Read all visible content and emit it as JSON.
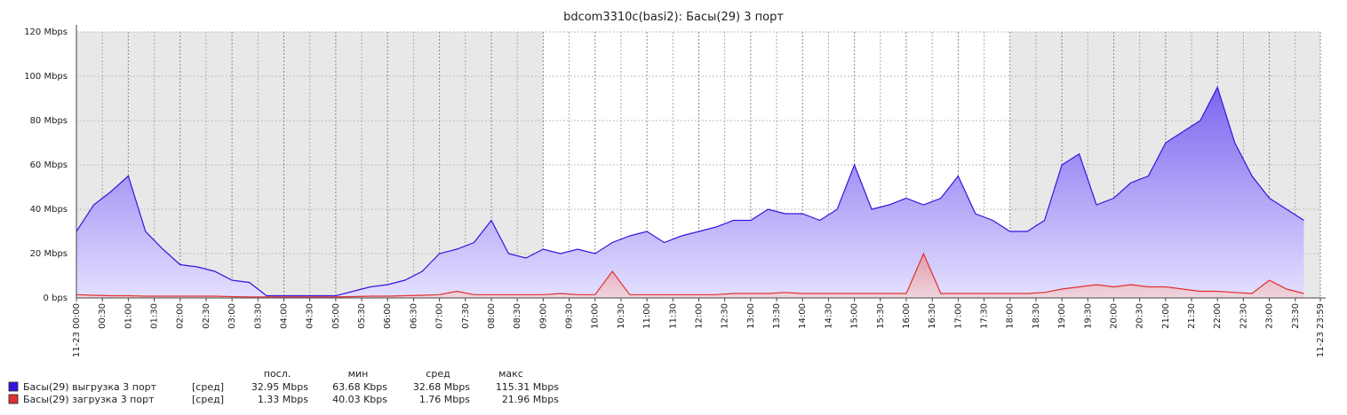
{
  "chart_data": {
    "type": "line",
    "title": "bdcom3310c(basi2): Басы(29) 3 порт",
    "x": [
      0,
      20,
      40,
      60,
      80,
      100,
      120,
      140,
      160,
      180,
      200,
      220,
      240,
      260,
      280,
      300,
      320,
      340,
      360,
      380,
      400,
      420,
      440,
      460,
      480,
      500,
      520,
      540,
      560,
      580,
      600,
      620,
      640,
      660,
      680,
      700,
      720,
      740,
      760,
      780,
      800,
      820,
      840,
      860,
      880,
      900,
      920,
      940,
      960,
      980,
      1000,
      1020,
      1040,
      1060,
      1080,
      1100,
      1120,
      1140,
      1160,
      1180,
      1200,
      1220,
      1240,
      1260,
      1280,
      1300,
      1320,
      1340,
      1360,
      1380,
      1400,
      1420
    ],
    "series": [
      {
        "name": "Басы(29)  выгрузка 3 порт",
        "color": "#3a12e0",
        "fill_top": "#7a66ee",
        "fill_bottom": "#e4e0ff",
        "values": [
          30,
          42,
          48,
          55,
          30,
          22,
          15,
          14,
          12,
          8,
          7,
          1,
          1,
          1,
          1,
          1,
          3,
          5,
          6,
          8,
          12,
          20,
          22,
          25,
          35,
          20,
          18,
          22,
          20,
          22,
          20,
          25,
          28,
          30,
          25,
          28,
          30,
          32,
          35,
          35,
          40,
          38,
          38,
          35,
          40,
          60,
          40,
          42,
          45,
          42,
          45,
          55,
          38,
          35,
          30,
          30,
          35,
          60,
          65,
          42,
          45,
          52,
          55,
          70,
          75,
          80,
          95,
          70,
          55,
          45,
          40,
          35
        ]
      },
      {
        "name": "Басы(29) загрузка 3 порт",
        "color": "#e03030",
        "fill_top": "#e88a8a",
        "fill_bottom": "#f5d0d0",
        "values": [
          1.5,
          1.2,
          1,
          1,
          0.8,
          0.8,
          0.8,
          0.8,
          0.8,
          0.6,
          0.5,
          0.5,
          0.5,
          0.5,
          0.5,
          0.5,
          0.6,
          0.8,
          0.8,
          1,
          1.2,
          1.5,
          3,
          1.5,
          1.5,
          1.5,
          1.5,
          1.5,
          2,
          1.5,
          1.5,
          12,
          1.5,
          1.5,
          1.5,
          1.5,
          1.5,
          1.5,
          2,
          2,
          2,
          2.5,
          2,
          2,
          2,
          2,
          2,
          2,
          2,
          20,
          2,
          2,
          2,
          2,
          2,
          2,
          2.5,
          4,
          5,
          6,
          5,
          6,
          5,
          5,
          4,
          3,
          3,
          2.5,
          2,
          8,
          4,
          2
        ]
      }
    ],
    "xlim": [
      0,
      1439
    ],
    "ylim": [
      0,
      120
    ],
    "yticks": [
      {
        "value": 0,
        "label": "0 bps"
      },
      {
        "value": 20,
        "label": "20 Mbps"
      },
      {
        "value": 40,
        "label": "40 Mbps"
      },
      {
        "value": 60,
        "label": "60 Mbps"
      },
      {
        "value": 80,
        "label": "80 Mbps"
      },
      {
        "value": 100,
        "label": "100 Mbps"
      },
      {
        "value": 120,
        "label": "120 Mbps"
      }
    ],
    "xticks": [
      {
        "value": 0,
        "label": "11-23 00:00"
      },
      {
        "value": 30,
        "label": "00:30"
      },
      {
        "value": 60,
        "label": "01:00"
      },
      {
        "value": 90,
        "label": "01:30"
      },
      {
        "value": 120,
        "label": "02:00"
      },
      {
        "value": 150,
        "label": "02:30"
      },
      {
        "value": 180,
        "label": "03:00"
      },
      {
        "value": 210,
        "label": "03:30"
      },
      {
        "value": 240,
        "label": "04:00"
      },
      {
        "value": 270,
        "label": "04:30"
      },
      {
        "value": 300,
        "label": "05:00"
      },
      {
        "value": 330,
        "label": "05:30"
      },
      {
        "value": 360,
        "label": "06:00"
      },
      {
        "value": 390,
        "label": "06:30"
      },
      {
        "value": 420,
        "label": "07:00"
      },
      {
        "value": 450,
        "label": "07:30"
      },
      {
        "value": 480,
        "label": "08:00"
      },
      {
        "value": 510,
        "label": "08:30"
      },
      {
        "value": 540,
        "label": "09:00"
      },
      {
        "value": 570,
        "label": "09:30"
      },
      {
        "value": 600,
        "label": "10:00"
      },
      {
        "value": 630,
        "label": "10:30"
      },
      {
        "value": 660,
        "label": "11:00"
      },
      {
        "value": 690,
        "label": "11:30"
      },
      {
        "value": 720,
        "label": "12:00"
      },
      {
        "value": 750,
        "label": "12:30"
      },
      {
        "value": 780,
        "label": "13:00"
      },
      {
        "value": 810,
        "label": "13:30"
      },
      {
        "value": 840,
        "label": "14:00"
      },
      {
        "value": 870,
        "label": "14:30"
      },
      {
        "value": 900,
        "label": "15:00"
      },
      {
        "value": 930,
        "label": "15:30"
      },
      {
        "value": 960,
        "label": "16:00"
      },
      {
        "value": 990,
        "label": "16:30"
      },
      {
        "value": 1020,
        "label": "17:00"
      },
      {
        "value": 1050,
        "label": "17:30"
      },
      {
        "value": 1080,
        "label": "18:00"
      },
      {
        "value": 1110,
        "label": "18:30"
      },
      {
        "value": 1140,
        "label": "19:00"
      },
      {
        "value": 1170,
        "label": "19:30"
      },
      {
        "value": 1200,
        "label": "20:00"
      },
      {
        "value": 1230,
        "label": "20:30"
      },
      {
        "value": 1260,
        "label": "21:00"
      },
      {
        "value": 1290,
        "label": "21:30"
      },
      {
        "value": 1320,
        "label": "22:00"
      },
      {
        "value": 1350,
        "label": "22:30"
      },
      {
        "value": 1380,
        "label": "23:00"
      },
      {
        "value": 1410,
        "label": "23:30"
      },
      {
        "value": 1439,
        "label": "11-23 23:59"
      }
    ],
    "grid": true,
    "hour_label_color": "#dd0000",
    "shaded_ranges": [
      [
        0,
        540
      ],
      [
        1080,
        1439
      ]
    ],
    "legend_stats": {
      "header": [
        "посл.",
        "мин",
        "сред",
        "макс"
      ],
      "rows": [
        {
          "function": "[сред]",
          "values": [
            "32.95 Mbps",
            "63.68 Kbps",
            "32.68 Mbps",
            "115.31 Mbps"
          ]
        },
        {
          "function": "[сред]",
          "values": [
            "1.33 Mbps",
            "40.03 Kbps",
            "1.76 Mbps",
            "21.96 Mbps"
          ]
        }
      ]
    }
  }
}
